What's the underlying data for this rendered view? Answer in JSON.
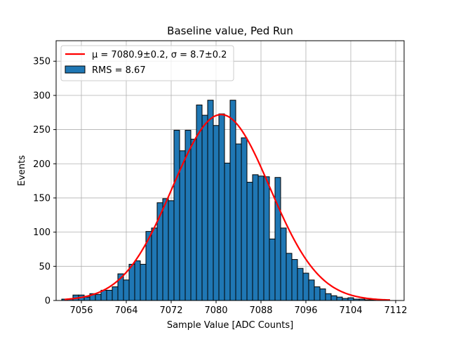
{
  "chart_data": {
    "type": "bar",
    "title": "Baseline value, Ped Run",
    "xlabel": "Sample Value [ADC Counts]",
    "ylabel": "Events",
    "xlim": [
      7051.5,
      7113.5
    ],
    "ylim": [
      0,
      380
    ],
    "xticks": [
      7056,
      7064,
      7072,
      7080,
      7088,
      7096,
      7104,
      7112
    ],
    "yticks": [
      0,
      50,
      100,
      150,
      200,
      250,
      300,
      350
    ],
    "grid": true,
    "legend_position": "top-left",
    "bin_width": 1,
    "bins": {
      "x": [
        7053,
        7054,
        7055,
        7056,
        7057,
        7058,
        7059,
        7060,
        7061,
        7062,
        7063,
        7064,
        7065,
        7066,
        7067,
        7068,
        7069,
        7070,
        7071,
        7072,
        7073,
        7074,
        7075,
        7076,
        7077,
        7078,
        7079,
        7080,
        7081,
        7082,
        7083,
        7084,
        7085,
        7086,
        7087,
        7088,
        7089,
        7090,
        7091,
        7092,
        7093,
        7094,
        7095,
        7096,
        7097,
        7098,
        7099,
        7100,
        7101,
        7102,
        7103,
        7104,
        7105,
        7106,
        7107,
        7108
      ],
      "values": [
        2,
        2,
        8,
        8,
        5,
        10,
        9,
        15,
        15,
        20,
        39,
        30,
        53,
        58,
        53,
        101,
        106,
        143,
        149,
        146,
        249,
        219,
        249,
        236,
        286,
        271,
        293,
        256,
        273,
        201,
        293,
        229,
        238,
        173,
        184,
        182,
        181,
        90,
        180,
        106,
        69,
        60,
        47,
        40,
        30,
        20,
        17,
        10,
        7,
        5,
        3,
        4,
        2,
        2,
        1,
        1
      ]
    },
    "series": [
      {
        "name": "RMS = 8.67",
        "kind": "histogram",
        "color": "#1f77b4"
      },
      {
        "name": "μ = 7080.9±0.2, σ = 8.7±0.2",
        "kind": "gaussian_fit",
        "color": "#ff0000",
        "mu": 7080.9,
        "sigma": 8.7,
        "amplitude": 272,
        "x_range": [
          7053,
          7111
        ]
      }
    ]
  }
}
